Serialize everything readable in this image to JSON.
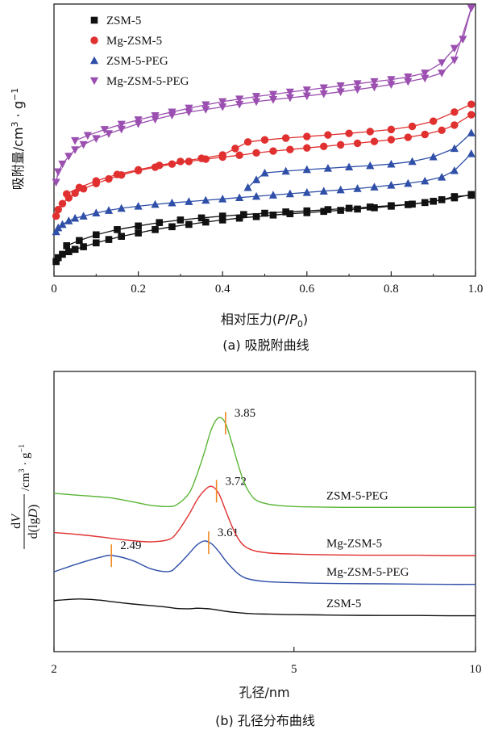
{
  "chart_data": [
    {
      "type": "line",
      "panel_caption": "(a) 吸脱附曲线",
      "xlabel": "相对压力(P/P0)",
      "xlabel_parts": {
        "prefix": "相对压力(",
        "p": "P",
        "slash": "/",
        "p0": "P",
        "sub": "0",
        "suffix": ")"
      },
      "ylabel": "吸附量/cm3 · g−1",
      "ylabel_parts": {
        "main": "吸附量/cm",
        "sup1": "3",
        "mid": " · g",
        "sup2": "−1"
      },
      "xlim": [
        0,
        1.0
      ],
      "x_ticks": [
        0,
        0.2,
        0.4,
        0.6,
        0.8,
        1.0
      ],
      "x_tick_labels": [
        "0",
        "0.2",
        "0.4",
        "0.6",
        "0.8",
        "1.0"
      ],
      "y_axis": "relative vertical units (no numeric tick labels)",
      "ylim": [
        0,
        100
      ],
      "legend_position": "top-left",
      "series": [
        {
          "name": "ZSM-5",
          "color": "#111111",
          "marker": "square",
          "adsorption_x": [
            0.005,
            0.01,
            0.02,
            0.035,
            0.05,
            0.07,
            0.1,
            0.13,
            0.16,
            0.2,
            0.24,
            0.28,
            0.32,
            0.36,
            0.4,
            0.44,
            0.48,
            0.52,
            0.56,
            0.6,
            0.64,
            0.68,
            0.72,
            0.76,
            0.8,
            0.84,
            0.88,
            0.92,
            0.95,
            0.99
          ],
          "adsorption_y": [
            2.5,
            4.0,
            5.3,
            6.3,
            7.2,
            8.2,
            9.7,
            11.0,
            12.2,
            13.5,
            14.8,
            15.9,
            16.8,
            17.7,
            18.5,
            19.2,
            19.8,
            20.4,
            20.9,
            21.3,
            21.8,
            22.2,
            22.7,
            23.2,
            23.8,
            24.4,
            25.2,
            26.3,
            27.5,
            28.0
          ],
          "desorption_x": [
            0.99,
            0.95,
            0.9,
            0.85,
            0.8,
            0.75,
            0.7,
            0.65,
            0.6,
            0.55,
            0.5,
            0.45,
            0.4,
            0.35,
            0.3,
            0.25,
            0.2,
            0.15,
            0.1,
            0.06,
            0.03
          ],
          "desorption_y": [
            28.3,
            27.0,
            25.7,
            24.6,
            24.0,
            23.5,
            23.0,
            22.5,
            22.0,
            21.6,
            21.1,
            20.6,
            20.0,
            19.3,
            18.5,
            17.5,
            16.2,
            14.8,
            12.8,
            10.6,
            8.6
          ]
        },
        {
          "name": "Mg-ZSM-5",
          "color": "#e03030",
          "marker": "circle",
          "adsorption_x": [
            0.005,
            0.01,
            0.02,
            0.035,
            0.05,
            0.07,
            0.1,
            0.13,
            0.16,
            0.2,
            0.24,
            0.28,
            0.32,
            0.36,
            0.4,
            0.44,
            0.48,
            0.52,
            0.56,
            0.6,
            0.64,
            0.68,
            0.72,
            0.76,
            0.8,
            0.84,
            0.88,
            0.92,
            0.95,
            0.99
          ],
          "adsorption_y": [
            20.0,
            22.5,
            24.8,
            27.0,
            28.8,
            30.5,
            32.5,
            34.3,
            35.8,
            37.5,
            38.8,
            40.0,
            41.0,
            41.9,
            42.7,
            43.4,
            44.3,
            45.0,
            45.6,
            46.2,
            46.8,
            47.4,
            48.0,
            48.7,
            49.4,
            50.3,
            51.4,
            53.0,
            55.0,
            59.0
          ],
          "desorption_x": [
            0.99,
            0.95,
            0.9,
            0.85,
            0.8,
            0.75,
            0.7,
            0.65,
            0.6,
            0.55,
            0.5,
            0.46,
            0.43,
            0.4,
            0.35,
            0.3,
            0.25,
            0.2,
            0.15,
            0.1,
            0.06,
            0.03
          ],
          "desorption_y": [
            63.0,
            60.0,
            56.5,
            54.5,
            53.3,
            52.5,
            51.8,
            51.2,
            50.6,
            50.0,
            49.3,
            48.5,
            46.0,
            43.5,
            42.2,
            41.0,
            39.5,
            37.8,
            36.0,
            33.5,
            31.0,
            28.5
          ]
        },
        {
          "name": "ZSM-5-PEG",
          "color": "#2f4fa8",
          "marker": "triangle-up",
          "adsorption_x": [
            0.005,
            0.01,
            0.02,
            0.035,
            0.05,
            0.07,
            0.1,
            0.13,
            0.16,
            0.2,
            0.24,
            0.28,
            0.32,
            0.36,
            0.4,
            0.44,
            0.48,
            0.52,
            0.56,
            0.6,
            0.64,
            0.68,
            0.72,
            0.76,
            0.8,
            0.84,
            0.88,
            0.92,
            0.95,
            0.99
          ],
          "adsorption_y": [
            14.0,
            15.5,
            16.8,
            18.2,
            19.2,
            20.0,
            21.2,
            22.2,
            23.0,
            23.8,
            24.5,
            25.1,
            25.6,
            26.1,
            26.6,
            27.1,
            27.6,
            28.1,
            28.6,
            29.1,
            29.6,
            30.1,
            30.6,
            31.2,
            31.9,
            32.6,
            33.5,
            35.0,
            37.5,
            44.0
          ],
          "desorption_x": [
            0.99,
            0.95,
            0.9,
            0.85,
            0.8,
            0.75,
            0.7,
            0.65,
            0.6,
            0.55,
            0.5,
            0.48,
            0.46
          ],
          "desorption_y": [
            52.0,
            46.0,
            42.8,
            41.0,
            40.0,
            39.4,
            38.9,
            38.4,
            37.9,
            37.3,
            36.6,
            34.0,
            31.0
          ]
        },
        {
          "name": "Mg-ZSM-5-PEG",
          "color": "#9b4fb0",
          "marker": "triangle-down",
          "adsorption_x": [
            0.005,
            0.01,
            0.02,
            0.035,
            0.05,
            0.07,
            0.1,
            0.13,
            0.16,
            0.2,
            0.24,
            0.28,
            0.32,
            0.36,
            0.4,
            0.44,
            0.48,
            0.52,
            0.56,
            0.6,
            0.64,
            0.68,
            0.72,
            0.76,
            0.8,
            0.84,
            0.88,
            0.92,
            0.95,
            0.99
          ],
          "adsorption_y": [
            33.0,
            37.0,
            40.0,
            43.0,
            45.5,
            47.5,
            49.8,
            51.7,
            53.4,
            55.5,
            57.2,
            58.8,
            60.0,
            61.0,
            62.0,
            63.0,
            64.0,
            64.8,
            65.5,
            66.2,
            67.0,
            67.8,
            68.7,
            69.6,
            70.6,
            71.7,
            73.0,
            75.0,
            80.0,
            100.0
          ],
          "desorption_x": [
            0.99,
            0.97,
            0.95,
            0.92,
            0.88,
            0.84,
            0.8,
            0.76,
            0.72,
            0.68,
            0.64,
            0.6,
            0.56,
            0.52,
            0.48,
            0.44,
            0.4,
            0.36,
            0.32,
            0.28,
            0.24,
            0.2,
            0.16,
            0.12,
            0.08,
            0.05
          ],
          "desorption_y": [
            100.0,
            88.0,
            84.5,
            79.0,
            75.0,
            73.5,
            72.5,
            71.7,
            70.9,
            70.1,
            69.3,
            68.5,
            67.7,
            66.8,
            66.0,
            65.0,
            64.0,
            62.8,
            61.5,
            60.0,
            58.6,
            57.0,
            55.3,
            53.3,
            51.0,
            49.0
          ]
        }
      ]
    },
    {
      "type": "line",
      "panel_caption": "(b) 孔径分布曲线",
      "xlabel": "孔径/nm",
      "xscale": "log",
      "xlim": [
        2,
        10
      ],
      "x_ticks": [
        2,
        5,
        10
      ],
      "x_tick_labels": [
        "2",
        "5",
        "10"
      ],
      "ylabel": "dV/d(lgD) /cm3 · g−1",
      "ylabel_parts": {
        "num_d": "d",
        "num_v": "V",
        "den_pre": "d(lg",
        "den_d": "D",
        "den_post": ")",
        "unit_main": "/cm",
        "unit_sup1": "3",
        "unit_mid": " · g",
        "unit_sup2": "−1"
      },
      "y_axis": "relative vertical units, curves vertically offset (no numeric tick labels)",
      "ylim": [
        0,
        100
      ],
      "x_grid": [
        2,
        2.2,
        2.4,
        2.5,
        2.7,
        2.9,
        3.1,
        3.2,
        3.35,
        3.45,
        3.55,
        3.65,
        3.75,
        3.85,
        3.95,
        4.05,
        4.15,
        4.3,
        4.5,
        4.7,
        5,
        5.5,
        6,
        7,
        8,
        9,
        10
      ],
      "series": [
        {
          "name": "ZSM-5",
          "color": "#111111",
          "label_text": "ZSM-5",
          "y": [
            18.2,
            18.8,
            18.3,
            17.8,
            17.0,
            16.4,
            15.8,
            15.4,
            15.3,
            15.5,
            15.4,
            15.2,
            14.8,
            14.4,
            14.1,
            13.9,
            13.7,
            13.5,
            13.4,
            13.3,
            13.2,
            13.1,
            13.0,
            12.9,
            12.9,
            12.8,
            12.8
          ],
          "peaks": []
        },
        {
          "name": "Mg-ZSM-5-PEG",
          "color": "#2f4fa8",
          "label_text": "Mg-ZSM-5-PEG",
          "y": [
            28.5,
            31.5,
            33.8,
            34.3,
            32.5,
            29.5,
            28.6,
            30.5,
            35.0,
            38.0,
            39.5,
            38.5,
            35.8,
            32.5,
            29.8,
            27.6,
            26.3,
            25.5,
            25.0,
            24.8,
            24.6,
            24.4,
            24.3,
            24.2,
            24.1,
            24.0,
            24.0
          ],
          "peaks": [
            {
              "x": 2.49,
              "label": "2.49"
            },
            {
              "x": 3.61,
              "label": "3.61"
            }
          ]
        },
        {
          "name": "Mg-ZSM-5",
          "color": "#e03030",
          "label_text": "Mg-ZSM-5",
          "y": [
            42.5,
            41.8,
            40.9,
            40.4,
            39.6,
            39.2,
            40.0,
            42.5,
            49.0,
            54.0,
            57.5,
            59.0,
            56.5,
            50.5,
            44.5,
            40.0,
            37.5,
            36.0,
            35.3,
            35.0,
            34.8,
            34.6,
            34.5,
            34.4,
            34.4,
            34.3,
            34.3
          ],
          "peaks": [
            {
              "x": 3.72,
              "label": "3.72"
            }
          ]
        },
        {
          "name": "ZSM-5-PEG",
          "color": "#5ab536",
          "label_text": "ZSM-5-PEG",
          "y": [
            56.5,
            55.8,
            55.2,
            54.8,
            53.5,
            52.2,
            51.8,
            52.5,
            56.5,
            63.0,
            71.0,
            79.5,
            83.5,
            81.5,
            74.0,
            66.0,
            59.5,
            54.5,
            52.8,
            52.2,
            51.8,
            51.6,
            51.5,
            51.5,
            51.5,
            51.5,
            51.5
          ],
          "peaks": [
            {
              "x": 3.85,
              "label": "3.85"
            }
          ]
        }
      ]
    }
  ]
}
